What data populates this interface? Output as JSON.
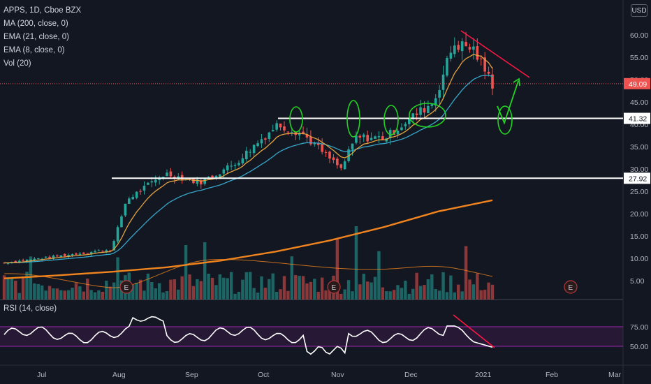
{
  "legend": {
    "symbol": "APPS, 1D, Cboe BZX",
    "ma200": "MA (200, close, 0)",
    "ema21": "EMA (21, close, 0)",
    "ema8": "EMA (8, close, 0)",
    "vol": "Vol (20)"
  },
  "rsi_legend": "RSI (14, close)",
  "currency_button": "USD",
  "colors": {
    "background": "#131722",
    "up": "#26a69a",
    "down": "#ef5350",
    "ma200": "#f0841e",
    "ema21": "#37a6c9",
    "ema8": "#e3a340",
    "rsi_line": "#ffffff",
    "rsi_band": "#9c27b0",
    "annotation_green": "#23d323",
    "annotation_red": "#ff1744",
    "support_line": "#ffffff",
    "price_tag": "#ef5350"
  },
  "icons": {
    "earnings_marker": "E"
  },
  "chart_data": [
    {
      "type": "candlestick",
      "title": "APPS, 1D, Cboe BZX",
      "y_ticks": [
        "60.00",
        "55.00",
        "50.00",
        "45.00",
        "40.00",
        "35.00",
        "30.00",
        "25.00",
        "20.00",
        "15.00",
        "10.00",
        "5.00"
      ],
      "x_ticks": [
        "Jul",
        "Aug",
        "Sep",
        "Oct",
        "Nov",
        "Dec",
        "2021",
        "Feb",
        "Mar"
      ],
      "ylim": [
        0,
        65
      ],
      "last_price": "49.09",
      "horizontal_levels": [
        "41.32",
        "27.92"
      ],
      "earnings_markers": [
        "E",
        "E",
        "E"
      ],
      "annotations": "green ellipses mark support retests at 41.32; red trendline drawn across recent highs; green V arrow projects bounce near 41.32",
      "series": [
        {
          "name": "MA (200, close, 0)",
          "values": [
            5.5,
            6.2,
            7.0,
            8.0,
            9.5,
            11.5,
            14.0,
            17.0,
            20.5,
            23.0
          ]
        },
        {
          "name": "EMA (21, close, 0)"
        },
        {
          "name": "EMA (8, close, 0)"
        },
        {
          "name": "Vol (20)"
        }
      ]
    },
    {
      "type": "line",
      "title": "RSI (14, close)",
      "y_ticks": [
        "75.00",
        "50.00"
      ],
      "band": [
        50,
        75
      ]
    }
  ]
}
